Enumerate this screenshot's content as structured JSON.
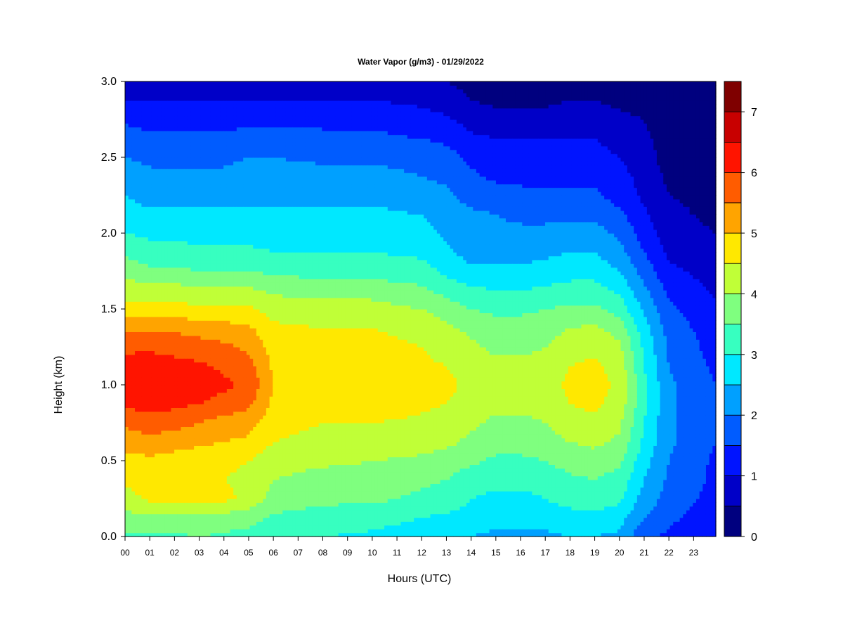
{
  "chart_data": {
    "type": "heatmap",
    "title": "Water Vapor (g/m3) - 01/29/2022",
    "xlabel": "Hours (UTC)",
    "ylabel": "Height (km)",
    "x_ticks": [
      "00",
      "01",
      "02",
      "03",
      "04",
      "05",
      "06",
      "07",
      "08",
      "09",
      "10",
      "11",
      "12",
      "13",
      "14",
      "15",
      "16",
      "17",
      "18",
      "19",
      "20",
      "21",
      "22",
      "23"
    ],
    "y_ticks": [
      "0.0",
      "0.5",
      "1.0",
      "1.5",
      "2.0",
      "2.5",
      "3.0"
    ],
    "xlim": [
      0,
      23.9
    ],
    "ylim": [
      0,
      3.0
    ],
    "colorbar": {
      "ticks": [
        "0",
        "1",
        "2",
        "3",
        "4",
        "5",
        "6",
        "7"
      ],
      "range": [
        0,
        7.5
      ],
      "levels": [
        0,
        0.5,
        1,
        1.5,
        2,
        2.5,
        3,
        3.5,
        4,
        4.5,
        5,
        5.5,
        6,
        6.5,
        7,
        7.5
      ],
      "colors": [
        "#00007f",
        "#0000c8",
        "#0014ff",
        "#005cff",
        "#00a0ff",
        "#00e8ff",
        "#37ffc0",
        "#7fff7f",
        "#c0ff37",
        "#ffe800",
        "#ffa400",
        "#ff5c00",
        "#ff1400",
        "#c80000",
        "#7f0000"
      ]
    },
    "heights": [
      0.0,
      0.125,
      0.25,
      0.375,
      0.5,
      0.625,
      0.75,
      0.875,
      1.0,
      1.125,
      1.25,
      1.375,
      1.5,
      1.625,
      1.75,
      1.875,
      2.0,
      2.125,
      2.25,
      2.375,
      2.5,
      2.625,
      2.75,
      2.875,
      3.0
    ],
    "profiles": [
      {
        "hour": 0.0,
        "values": [
          3.4,
          3.8,
          4.3,
          4.6,
          4.8,
          5.2,
          5.6,
          6.1,
          6.4,
          6.2,
          5.9,
          5.4,
          4.7,
          4.3,
          3.8,
          3.4,
          3.0,
          2.7,
          2.5,
          2.3,
          2.0,
          1.8,
          1.4,
          1.0,
          0.9
        ]
      },
      {
        "hour": 1.0,
        "values": [
          3.4,
          3.9,
          4.6,
          4.7,
          4.9,
          5.3,
          5.8,
          6.2,
          6.5,
          6.3,
          5.9,
          5.4,
          4.7,
          4.2,
          3.6,
          3.2,
          2.9,
          2.6,
          2.3,
          2.1,
          1.9,
          1.6,
          1.3,
          1.0,
          0.9
        ]
      },
      {
        "hour": 2.0,
        "values": [
          3.4,
          3.9,
          4.7,
          4.6,
          4.8,
          5.2,
          5.7,
          6.1,
          6.4,
          6.2,
          5.8,
          5.4,
          4.7,
          4.2,
          3.6,
          3.2,
          2.9,
          2.6,
          2.3,
          2.1,
          1.9,
          1.6,
          1.3,
          1.0,
          0.9
        ]
      },
      {
        "hour": 3.0,
        "values": [
          3.5,
          3.9,
          4.7,
          4.5,
          4.7,
          5.1,
          5.5,
          6.0,
          6.3,
          6.1,
          5.7,
          5.3,
          4.6,
          4.1,
          3.5,
          3.1,
          2.8,
          2.6,
          2.3,
          2.1,
          1.9,
          1.6,
          1.3,
          1.0,
          0.9
        ]
      },
      {
        "hour": 4.0,
        "values": [
          3.4,
          3.8,
          4.6,
          4.5,
          4.6,
          5.0,
          5.3,
          5.8,
          6.1,
          5.9,
          5.6,
          5.2,
          4.6,
          4.1,
          3.5,
          3.1,
          2.8,
          2.6,
          2.3,
          2.1,
          1.9,
          1.6,
          1.3,
          1.0,
          0.9
        ]
      },
      {
        "hour": 5.0,
        "values": [
          3.3,
          3.7,
          4.4,
          4.4,
          4.5,
          4.9,
          5.2,
          5.6,
          5.9,
          5.7,
          5.4,
          5.1,
          4.6,
          4.1,
          3.5,
          3.1,
          2.8,
          2.6,
          2.4,
          2.2,
          2.0,
          1.7,
          1.4,
          1.0,
          0.9
        ]
      },
      {
        "hour": 6.0,
        "values": [
          3.1,
          3.4,
          3.8,
          4.0,
          4.2,
          4.5,
          4.7,
          4.9,
          5.0,
          4.9,
          4.8,
          4.6,
          4.3,
          3.9,
          3.4,
          3.0,
          2.8,
          2.6,
          2.4,
          2.2,
          2.0,
          1.7,
          1.4,
          1.0,
          0.9
        ]
      },
      {
        "hour": 8.0,
        "values": [
          3.0,
          3.3,
          3.6,
          3.8,
          4.1,
          4.3,
          4.5,
          4.8,
          4.9,
          4.8,
          4.7,
          4.5,
          4.2,
          3.8,
          3.3,
          3.0,
          2.8,
          2.6,
          2.4,
          2.2,
          1.9,
          1.6,
          1.4,
          1.0,
          0.9
        ]
      },
      {
        "hour": 10.0,
        "values": [
          2.9,
          3.2,
          3.6,
          3.8,
          4.0,
          4.3,
          4.5,
          4.8,
          4.9,
          4.8,
          4.7,
          4.5,
          4.2,
          3.8,
          3.3,
          3.0,
          2.8,
          2.6,
          2.4,
          2.2,
          1.9,
          1.6,
          1.4,
          1.0,
          0.9
        ]
      },
      {
        "hour": 12.0,
        "values": [
          2.7,
          3.0,
          3.4,
          3.6,
          3.9,
          4.2,
          4.4,
          4.6,
          4.8,
          4.6,
          4.5,
          4.3,
          4.0,
          3.6,
          3.2,
          2.9,
          2.7,
          2.5,
          2.2,
          2.0,
          1.8,
          1.5,
          1.2,
          0.9,
          0.7
        ]
      },
      {
        "hour": 13.0,
        "values": [
          2.6,
          2.9,
          3.3,
          3.5,
          3.8,
          4.1,
          4.3,
          4.5,
          4.6,
          4.5,
          4.3,
          4.1,
          3.8,
          3.3,
          2.9,
          2.6,
          2.4,
          2.3,
          2.1,
          1.9,
          1.7,
          1.4,
          1.1,
          0.7,
          0.5
        ]
      },
      {
        "hour": 14.0,
        "values": [
          2.5,
          2.8,
          3.0,
          3.2,
          3.6,
          3.9,
          4.1,
          4.3,
          4.4,
          4.3,
          4.1,
          3.9,
          3.5,
          3.1,
          2.6,
          2.3,
          2.2,
          2.1,
          1.8,
          1.6,
          1.4,
          1.1,
          0.8,
          0.5,
          0.4
        ]
      },
      {
        "hour": 15.0,
        "values": [
          2.4,
          2.6,
          2.9,
          3.1,
          3.4,
          3.7,
          3.9,
          4.1,
          4.2,
          4.1,
          3.9,
          3.7,
          3.4,
          3.0,
          2.6,
          2.3,
          2.1,
          2.0,
          1.7,
          1.4,
          1.2,
          1.0,
          0.7,
          0.4,
          0.3
        ]
      },
      {
        "hour": 16.0,
        "values": [
          2.4,
          2.6,
          2.9,
          3.1,
          3.4,
          3.7,
          3.9,
          4.1,
          4.2,
          4.1,
          3.9,
          3.7,
          3.4,
          3.0,
          2.6,
          2.3,
          2.1,
          1.9,
          1.6,
          1.4,
          1.2,
          1.0,
          0.7,
          0.4,
          0.3
        ]
      },
      {
        "hour": 17.0,
        "values": [
          2.4,
          2.7,
          3.0,
          3.2,
          3.5,
          3.8,
          4.0,
          4.2,
          4.3,
          4.2,
          4.0,
          3.8,
          3.5,
          3.1,
          2.7,
          2.4,
          2.1,
          1.9,
          1.6,
          1.4,
          1.2,
          1.0,
          0.7,
          0.4,
          0.3
        ]
      },
      {
        "hour": 18.0,
        "values": [
          2.5,
          2.8,
          3.2,
          3.4,
          3.7,
          4.0,
          4.3,
          4.5,
          4.6,
          4.5,
          4.3,
          4.0,
          3.6,
          3.2,
          2.8,
          2.5,
          2.2,
          1.9,
          1.6,
          1.4,
          1.2,
          1.0,
          0.8,
          0.5,
          0.3
        ]
      },
      {
        "hour": 19.0,
        "values": [
          2.5,
          2.8,
          3.3,
          3.5,
          3.8,
          4.1,
          4.4,
          4.6,
          4.7,
          4.6,
          4.4,
          4.1,
          3.6,
          3.2,
          2.8,
          2.5,
          2.2,
          1.9,
          1.6,
          1.4,
          1.2,
          1.0,
          0.7,
          0.5,
          0.3
        ]
      },
      {
        "hour": 20.0,
        "values": [
          2.4,
          2.7,
          3.1,
          3.3,
          3.6,
          3.9,
          4.1,
          4.3,
          4.4,
          4.3,
          4.1,
          3.8,
          3.3,
          2.9,
          2.5,
          2.2,
          1.9,
          1.6,
          1.3,
          1.2,
          1.0,
          0.8,
          0.6,
          0.4,
          0.3
        ]
      },
      {
        "hour": 21.0,
        "values": [
          1.6,
          2.0,
          2.3,
          2.5,
          2.7,
          2.9,
          3.0,
          3.1,
          3.1,
          3.0,
          2.9,
          2.7,
          2.4,
          2.1,
          1.8,
          1.5,
          1.3,
          1.1,
          0.9,
          0.8,
          0.7,
          0.6,
          0.5,
          0.3,
          0.2
        ]
      },
      {
        "hour": 22.0,
        "values": [
          1.4,
          1.6,
          1.8,
          1.9,
          2.0,
          2.1,
          2.1,
          2.1,
          2.1,
          2.0,
          1.9,
          1.8,
          1.6,
          1.4,
          1.1,
          0.9,
          0.7,
          0.6,
          0.5,
          0.4,
          0.3,
          0.3,
          0.2,
          0.2,
          0.2
        ]
      },
      {
        "hour": 23.9,
        "values": [
          1.1,
          1.2,
          1.3,
          1.4,
          1.4,
          1.5,
          1.5,
          1.5,
          1.5,
          1.4,
          1.3,
          1.2,
          1.1,
          0.9,
          0.8,
          0.6,
          0.5,
          0.4,
          0.4,
          0.3,
          0.3,
          0.2,
          0.2,
          0.2,
          0.2
        ]
      }
    ]
  }
}
